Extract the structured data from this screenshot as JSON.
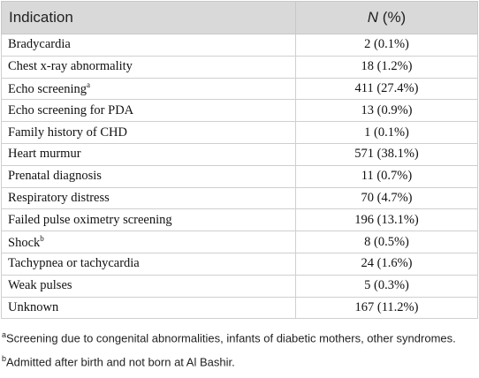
{
  "table": {
    "columns": [
      "Indication",
      {
        "italic": "N",
        "text": "(%)"
      }
    ],
    "rows": [
      {
        "indication": "Bradycardia",
        "count": "2 (0.1%)"
      },
      {
        "indication": "Chest x-ray abnormality",
        "count": "18 (1.2%)"
      },
      {
        "indication": "Echo screening",
        "note": "a",
        "count": "411 (27.4%)"
      },
      {
        "indication": "Echo screening for PDA",
        "count": "13 (0.9%)"
      },
      {
        "indication": "Family history of CHD",
        "count": "1 (0.1%)"
      },
      {
        "indication": "Heart murmur",
        "count": "571 (38.1%)"
      },
      {
        "indication": "Prenatal diagnosis",
        "count": "11 (0.7%)"
      },
      {
        "indication": "Respiratory distress",
        "count": "70 (4.7%)"
      },
      {
        "indication": "Failed pulse oximetry screening",
        "count": "196 (13.1%)"
      },
      {
        "indication": "Shock",
        "note": "b",
        "count": "8 (0.5%)"
      },
      {
        "indication": "Tachypnea or tachycardia",
        "count": "24 (1.6%)"
      },
      {
        "indication": "Weak pulses",
        "count": "5 (0.3%)"
      },
      {
        "indication": "Unknown",
        "count": "167 (11.2%)"
      }
    ]
  },
  "footnotes": [
    {
      "mark": "a",
      "text": "Screening due to congenital abnormalities, infants of diabetic mothers, other syndromes."
    },
    {
      "mark": "b",
      "text": "Admitted after birth and not born at Al Bashir."
    }
  ]
}
